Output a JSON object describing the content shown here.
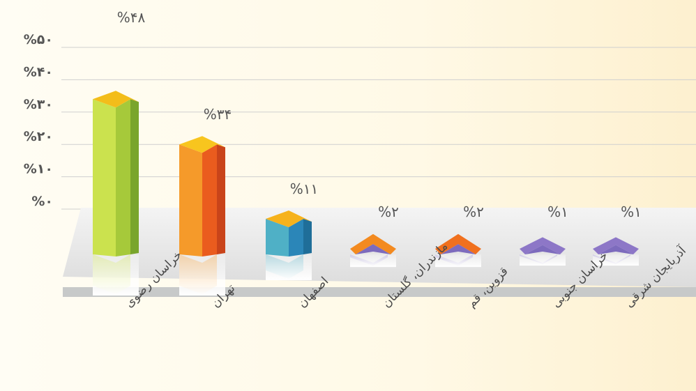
{
  "chart_data": {
    "type": "bar",
    "categories": [
      "خراسان رضوی",
      "تهران",
      "اصفهان",
      "مازندران، گلستان",
      "قزوین، قم",
      "خراسان جنوبی",
      "آذربایجان شرقی"
    ],
    "values": [
      48,
      34,
      11,
      2,
      2,
      1,
      1
    ],
    "data_labels": [
      "%۴۸",
      "%۳۴",
      "%۱۱",
      "%۲",
      "%۲",
      "%۱",
      "%۱"
    ],
    "y_ticks": [
      0,
      10,
      20,
      30,
      40,
      50
    ],
    "y_tick_labels": [
      "%۰",
      "%۱۰",
      "%۲۰",
      "%۳۰",
      "%۴۰",
      "%۵۰"
    ],
    "ylim": [
      0,
      50
    ],
    "grid": true,
    "legend": "none",
    "colors": [
      {
        "front": "#a6c93a",
        "light": "#cbe24e",
        "side": "#79a52c",
        "cap": "#f3bd1a"
      },
      {
        "front": "#ea5c1e",
        "light": "#f59a2a",
        "side": "#c9441a",
        "cap": "#f8c51e"
      },
      {
        "front": "#2b86b8",
        "light": "#4fb0c6",
        "side": "#1f6e99",
        "cap": "#f6b21c"
      },
      {
        "front": "#7d6bbd",
        "light": "#9a8bd2",
        "side": "#5f4f9f",
        "cap": "#f38a1f"
      },
      {
        "front": "#7d6bbd",
        "light": "#9a8bd2",
        "side": "#5f4f9f",
        "cap": "#f0701e"
      },
      {
        "front": "#7d6bbd",
        "light": "#9a8bd2",
        "side": "#5f4f9f",
        "cap": "#8d77c7"
      },
      {
        "front": "#7d6bbd",
        "light": "#9a8bd2",
        "side": "#5f4f9f",
        "cap": "#8d77c7"
      }
    ]
  }
}
